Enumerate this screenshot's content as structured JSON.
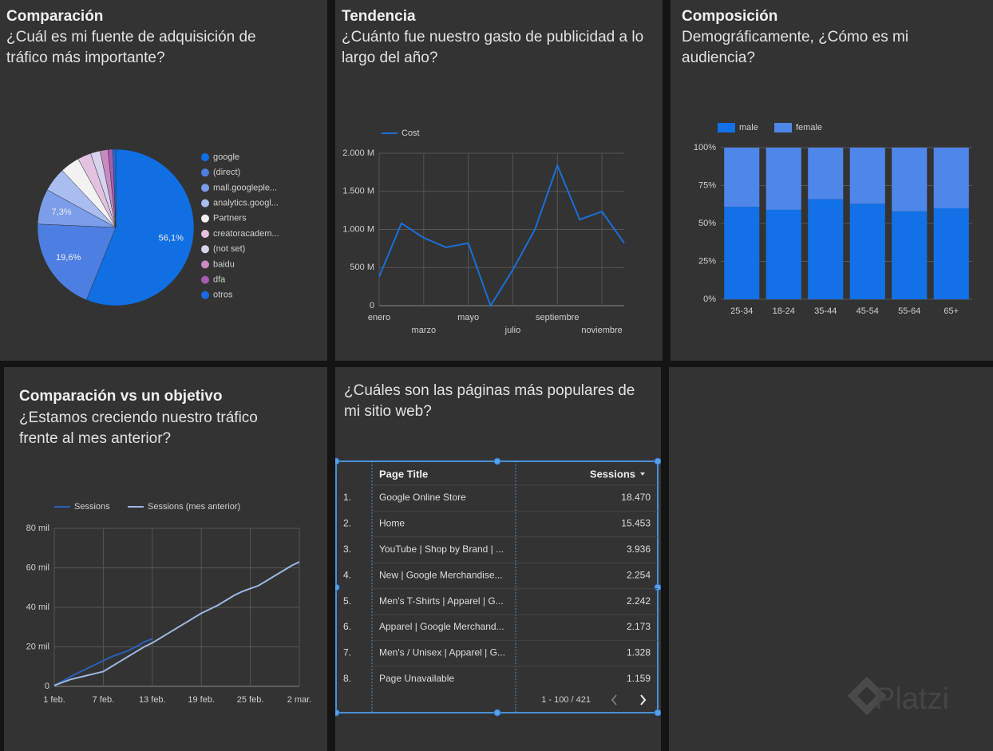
{
  "chart_data": [
    {
      "type": "pie",
      "title": "Comparación",
      "subtitle": "¿Cuál es mi fuente de adquisición de tráfico más importante?",
      "categories": [
        "google",
        "(direct)",
        "mall.googleple...",
        "analytics.googl...",
        "Partners",
        "creatoracadem...",
        "(not set)",
        "baidu",
        "dfa",
        "otros"
      ],
      "values": [
        56.1,
        19.6,
        7.3,
        5,
        4,
        2.8,
        2,
        1.6,
        1,
        0.6
      ],
      "value_labels": [
        "56,1%",
        "19,6%",
        "7,3%",
        null,
        null,
        null,
        null,
        null,
        null,
        null
      ],
      "colors": [
        "#0f6fe3",
        "#4d7fe2",
        "#7c9eea",
        "#a9bdf0",
        "#f2f2f2",
        "#e3c2df",
        "#d6d3ee",
        "#c78bc1",
        "#a55db0",
        "#1a6be0"
      ]
    },
    {
      "type": "line",
      "title": "Tendencia",
      "subtitle": "¿Cuánto fue nuestro gasto de publicidad a lo largo del año?",
      "categories": [
        "enero",
        null,
        "marzo",
        null,
        "mayo",
        null,
        "julio",
        null,
        "septiembre",
        null,
        "noviembre",
        null
      ],
      "series": [
        {
          "name": "Cost",
          "color": "#1a6fd8",
          "values": [
            380,
            1080,
            890,
            765,
            820,
            0,
            470,
            1005,
            1840,
            1130,
            1235,
            820
          ]
        }
      ],
      "ylim": [
        0,
        2000
      ],
      "yticks": [
        0,
        {
          "value": 500,
          "label": "500 M"
        },
        {
          "value": 1000,
          "label": "1.000 M"
        },
        {
          "value": 1500,
          "label": "1.500 M"
        },
        {
          "value": 2000,
          "label": "2.000 M"
        }
      ],
      "grid": true
    },
    {
      "type": "stacked_bar",
      "title": "Composición",
      "subtitle": "Demográficamente, ¿Cómo es mi audiencia?",
      "categories": [
        "25-34",
        "18-24",
        "35-44",
        "45-54",
        "55-64",
        "65+"
      ],
      "series": [
        {
          "name": "male",
          "color": "#1271e6",
          "values": [
            61,
            59,
            66,
            63,
            58,
            60
          ]
        },
        {
          "name": "female",
          "color": "#4e86ea",
          "values": [
            39,
            41,
            34,
            37,
            42,
            40
          ]
        }
      ],
      "ylim": [
        0,
        100
      ],
      "yticks": [
        {
          "value": 0,
          "label": "0%"
        },
        {
          "value": 25,
          "label": "25%"
        },
        {
          "value": 50,
          "label": "50%"
        },
        {
          "value": 75,
          "label": "75%"
        },
        {
          "value": 100,
          "label": "100%"
        }
      ],
      "grid": true
    },
    {
      "type": "line",
      "title": "Comparación vs un objetivo",
      "subtitle": "¿Estamos creciendo nuestro tráfico frente al mes anterior?",
      "categories": [
        "1 feb.",
        null,
        null,
        null,
        null,
        null,
        "7 feb.",
        null,
        null,
        null,
        null,
        null,
        "13 feb.",
        null,
        null,
        null,
        null,
        null,
        "19 feb.",
        null,
        null,
        null,
        null,
        null,
        "25 feb.",
        null,
        null,
        null,
        null,
        null,
        "2 mar."
      ],
      "series": [
        {
          "name": "Sessions",
          "color": "#2a5fb8",
          "values": [
            500,
            2500,
            5000,
            7000,
            9000,
            11000,
            13000,
            15000,
            16500,
            18000,
            20000,
            22500,
            24000,
            null,
            null,
            null,
            null,
            null,
            null,
            null,
            null,
            null,
            null,
            null,
            null,
            null,
            null,
            null,
            null,
            null,
            null
          ]
        },
        {
          "name": "Sessions (mes anterior)",
          "color": "#9db7e2",
          "values": [
            500,
            2000,
            3500,
            4500,
            5500,
            6500,
            7500,
            10000,
            12500,
            15000,
            17500,
            20000,
            22000,
            24500,
            27000,
            29500,
            32000,
            34500,
            37000,
            39000,
            41000,
            43500,
            46000,
            48000,
            49500,
            51000,
            53500,
            56000,
            58500,
            61000,
            63000
          ]
        }
      ],
      "ylim": [
        0,
        80000
      ],
      "yticks": [
        0,
        {
          "value": 20000,
          "label": "20 mil"
        },
        {
          "value": 40000,
          "label": "40 mil"
        },
        {
          "value": 60000,
          "label": "60 mil"
        },
        {
          "value": 80000,
          "label": "80 mil"
        }
      ],
      "grid": true
    }
  ],
  "table": {
    "title": "¿Cuáles son las páginas más populares de mi sitio web?",
    "columns": [
      "Page Title",
      "Sessions"
    ],
    "rows": [
      [
        "1.",
        "Google Online Store",
        "18.470"
      ],
      [
        "2.",
        "Home",
        "15.453"
      ],
      [
        "3.",
        "YouTube | Shop by Brand | ...",
        "3.936"
      ],
      [
        "4.",
        "New | Google Merchandise...",
        "2.254"
      ],
      [
        "5.",
        "Men's T-Shirts | Apparel | G...",
        "2.242"
      ],
      [
        "6.",
        "Apparel | Google Merchand...",
        "2.173"
      ],
      [
        "7.",
        "Men's / Unisex | Apparel | G...",
        "1.328"
      ],
      [
        "8.",
        "Page Unavailable",
        "1.159"
      ]
    ],
    "pagination": "1 - 100 / 421"
  },
  "watermark": "Platzi"
}
